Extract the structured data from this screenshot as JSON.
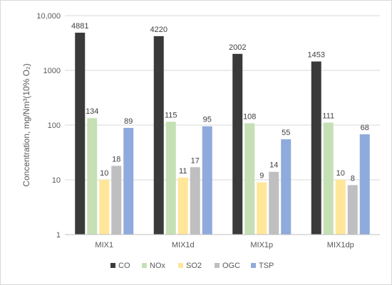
{
  "chart_data": {
    "type": "bar",
    "title": "",
    "xlabel": "",
    "ylabel": "Concentration, mg/Nm³(10% O₂)",
    "yscale": "log",
    "ylim": [
      1,
      10000
    ],
    "yticks": [
      1,
      10,
      100,
      1000,
      10000
    ],
    "ytick_labels": [
      "1",
      "10",
      "100",
      "1000",
      "10,000"
    ],
    "grid": "horizontal major gridlines",
    "legend_position": "bottom",
    "categories": [
      "MIX1",
      "MIX1d",
      "MIX1p",
      "MIX1dp"
    ],
    "series": [
      {
        "name": "CO",
        "color": "#3a3a3a",
        "values": [
          4881,
          4220,
          2002,
          1453
        ]
      },
      {
        "name": "NOx",
        "color": "#c5e0b4",
        "values": [
          134,
          115,
          108,
          111
        ]
      },
      {
        "name": "SO2",
        "color": "#ffe699",
        "values": [
          10,
          11,
          9,
          10
        ]
      },
      {
        "name": "OGC",
        "color": "#bfbfbf",
        "values": [
          18,
          17,
          14,
          8
        ]
      },
      {
        "name": "TSP",
        "color": "#8faadc",
        "values": [
          89,
          95,
          55,
          68
        ]
      }
    ]
  }
}
